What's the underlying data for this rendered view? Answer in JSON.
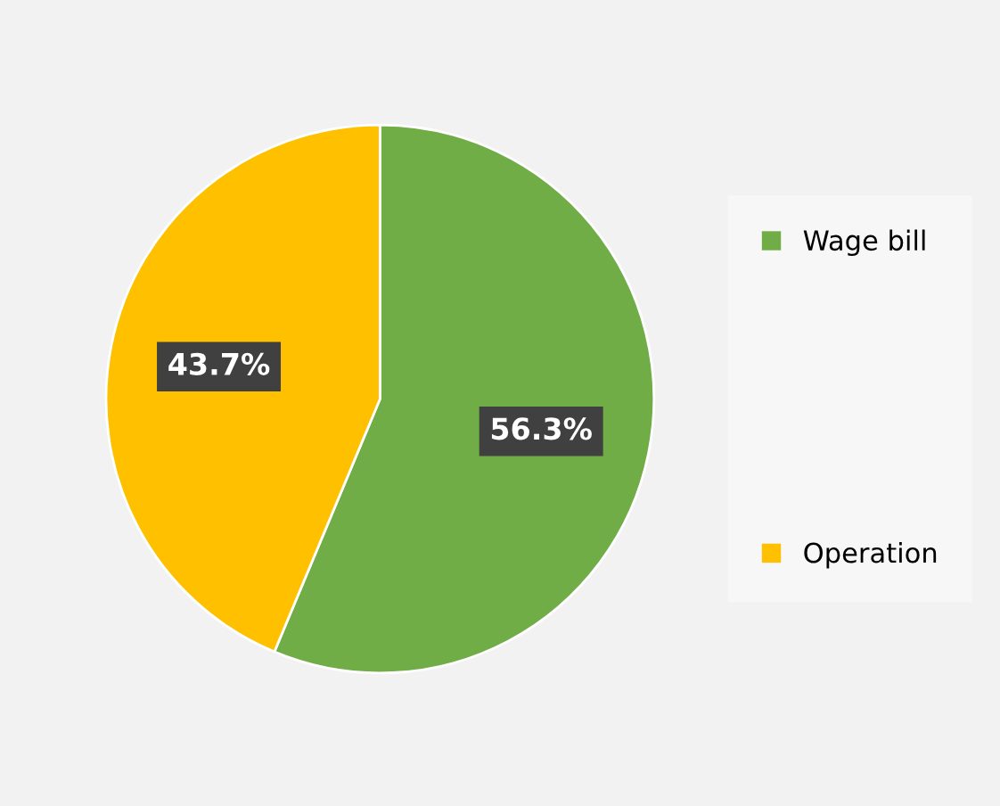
{
  "chart_data": {
    "type": "pie",
    "categories": [
      "Wage bill",
      "Operation"
    ],
    "values": [
      56.3,
      43.7
    ],
    "colors": [
      "#70ad47",
      "#ffc000"
    ],
    "value_labels": [
      "56.3%",
      "43.7%"
    ],
    "legend": "right"
  }
}
